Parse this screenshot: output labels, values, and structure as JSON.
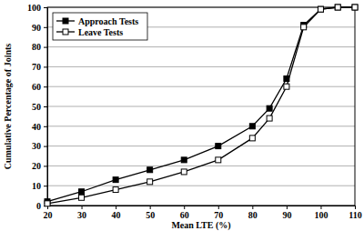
{
  "chart_data": {
    "type": "line",
    "x_label": "Mean LTE (%)",
    "y_label": "Cumulative Percentage of Joints",
    "x": [
      20,
      30,
      40,
      50,
      60,
      70,
      80,
      85,
      90,
      95,
      100,
      105,
      110
    ],
    "series": [
      {
        "name": "Approach Tests",
        "color": "#000000",
        "marker": "square-filled",
        "line_style": "solid",
        "values": [
          2,
          7,
          13,
          18,
          23,
          30,
          40,
          49,
          64,
          91,
          99,
          100,
          100
        ]
      },
      {
        "name": "Leave Tests",
        "color": "#000000",
        "marker": "square-open",
        "line_style": "solid",
        "values": [
          1,
          4,
          8,
          12,
          17,
          23,
          34,
          44,
          60,
          90,
          99,
          100,
          100
        ]
      }
    ],
    "xlim": [
      20,
      110
    ],
    "xticks": [
      20,
      30,
      40,
      50,
      60,
      70,
      80,
      90,
      100,
      110
    ],
    "ylim": [
      0,
      100
    ],
    "yticks": [
      0,
      10,
      20,
      30,
      40,
      50,
      60,
      70,
      80,
      90,
      100
    ],
    "grid": true,
    "legend": "upper-left"
  }
}
